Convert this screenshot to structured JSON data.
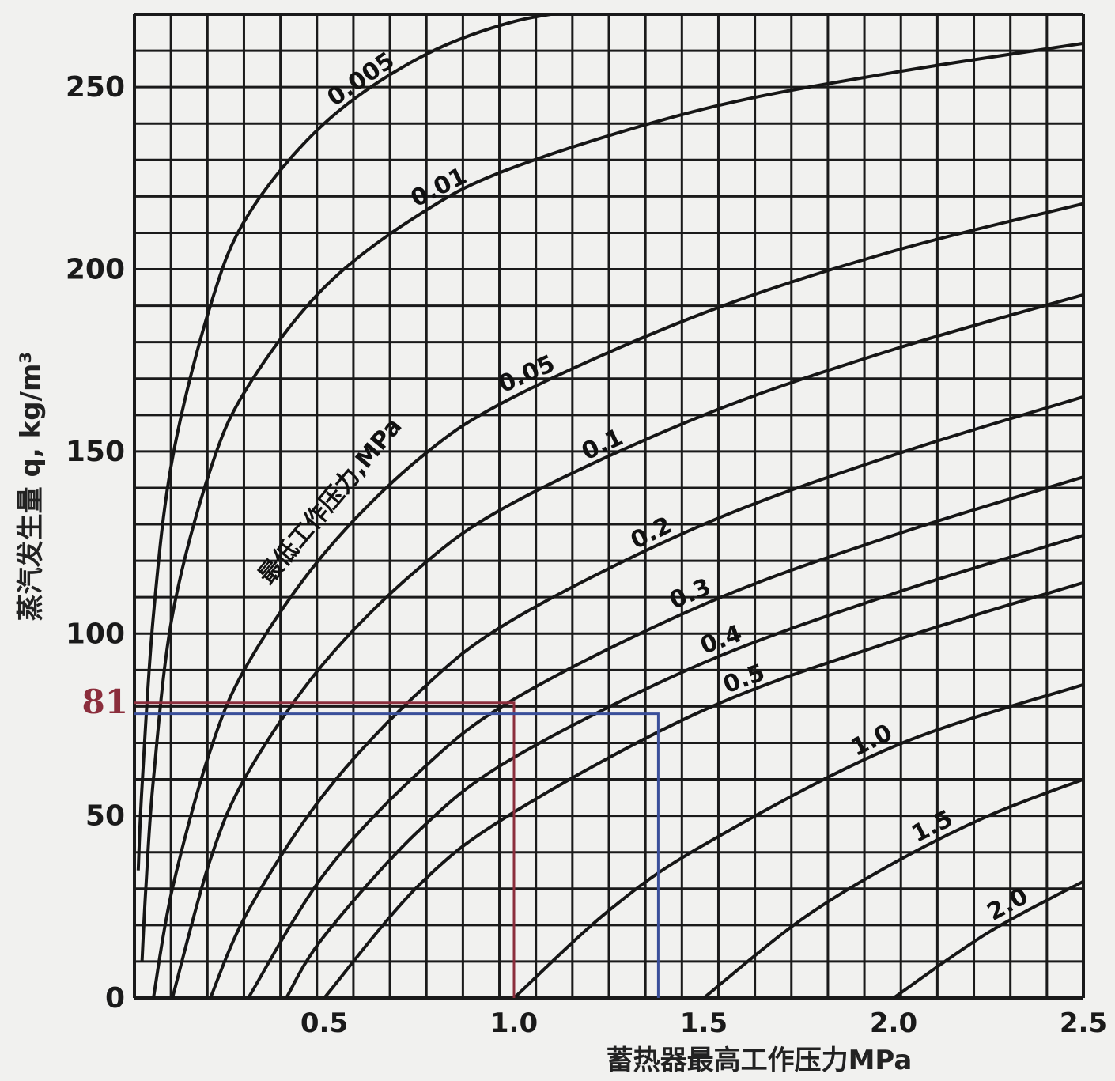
{
  "chart_data": {
    "type": "line",
    "xlabel": "蓄热器最高工作压力MPa",
    "ylabel": "蒸汽发生量 q, kg/m³",
    "family_label": "最低工作压力,MPa",
    "xlim": [
      0,
      2.5
    ],
    "ylim": [
      0,
      270
    ],
    "x_ticks": [
      "0.5",
      "1.0",
      "1.5",
      "2.0",
      "2.5"
    ],
    "x_tick_values": [
      0.5,
      1.0,
      1.5,
      2.0,
      2.5
    ],
    "y_ticks": [
      "0",
      "50",
      "100",
      "150",
      "200",
      "250"
    ],
    "y_tick_values": [
      0,
      50,
      100,
      150,
      200,
      250
    ],
    "grid": true,
    "series": [
      {
        "name": "0.005",
        "x": [
          0.01,
          0.02,
          0.05,
          0.1,
          0.2,
          0.3,
          0.5,
          0.75,
          1.0,
          1.25
        ],
        "y": [
          35,
          58,
          105,
          148,
          190,
          215,
          240,
          258,
          268,
          272
        ]
      },
      {
        "name": "0.01",
        "x": [
          0.02,
          0.03,
          0.05,
          0.1,
          0.2,
          0.3,
          0.5,
          0.75,
          1.0,
          1.5,
          2.0,
          2.5
        ],
        "y": [
          10,
          30,
          60,
          105,
          145,
          168,
          195,
          215,
          228,
          244,
          254,
          262
        ]
      },
      {
        "name": "0.05",
        "x": [
          0.05,
          0.1,
          0.2,
          0.3,
          0.5,
          0.75,
          1.0,
          1.5,
          2.0,
          2.5
        ],
        "y": [
          0,
          30,
          68,
          92,
          122,
          148,
          165,
          188,
          205,
          218
        ]
      },
      {
        "name": "0.1",
        "x": [
          0.1,
          0.2,
          0.3,
          0.5,
          0.75,
          1.0,
          1.5,
          2.0,
          2.5
        ],
        "y": [
          0,
          38,
          62,
          92,
          118,
          136,
          160,
          178,
          193
        ]
      },
      {
        "name": "0.2",
        "x": [
          0.2,
          0.3,
          0.5,
          0.75,
          1.0,
          1.5,
          2.0,
          2.5
        ],
        "y": [
          0,
          24,
          56,
          84,
          104,
          130,
          149,
          165
        ]
      },
      {
        "name": "0.3",
        "x": [
          0.3,
          0.5,
          0.75,
          1.0,
          1.5,
          2.0,
          2.5
        ],
        "y": [
          0,
          34,
          62,
          82,
          108,
          127,
          143
        ]
      },
      {
        "name": "0.4",
        "x": [
          0.4,
          0.5,
          0.75,
          1.0,
          1.5,
          2.0,
          2.5
        ],
        "y": [
          0,
          17,
          46,
          66,
          92,
          111,
          127
        ]
      },
      {
        "name": "0.5",
        "x": [
          0.5,
          0.75,
          1.0,
          1.5,
          2.0,
          2.5
        ],
        "y": [
          0,
          31,
          51,
          79,
          98,
          114
        ]
      },
      {
        "name": "1.0",
        "x": [
          1.0,
          1.25,
          1.5,
          2.0,
          2.5
        ],
        "y": [
          0,
          24,
          42,
          69,
          86
        ]
      },
      {
        "name": "1.5",
        "x": [
          1.5,
          1.75,
          2.0,
          2.25,
          2.5
        ],
        "y": [
          0,
          21,
          37,
          50,
          60
        ]
      },
      {
        "name": "2.0",
        "x": [
          2.0,
          2.25,
          2.5
        ],
        "y": [
          0,
          18,
          32
        ]
      }
    ],
    "annotations": [
      {
        "label": "81",
        "y": 81,
        "x_end": 1.0,
        "color": "#8b2e3c"
      },
      {
        "label": "",
        "y": 78,
        "x_end": 1.38,
        "color": "#3a4f9a"
      }
    ]
  }
}
